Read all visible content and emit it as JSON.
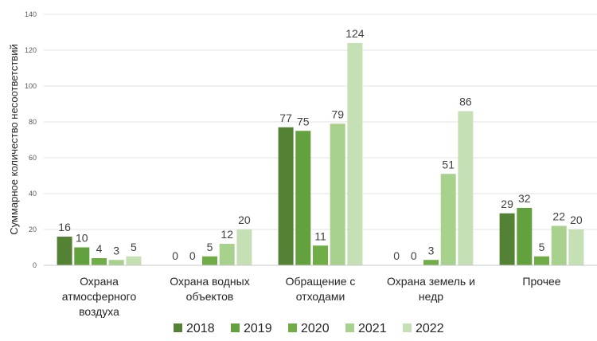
{
  "chart_data": {
    "type": "bar",
    "title": "",
    "ylabel": "Суммарное количество несоответствий",
    "xlabel": "",
    "ylim": [
      0,
      140
    ],
    "yticks": [
      0,
      20,
      40,
      60,
      80,
      100,
      120,
      140
    ],
    "grid": true,
    "legend_position": "bottom",
    "categories": [
      [
        "Охрана",
        "атмосферного",
        "воздуха"
      ],
      [
        "Охрана водных",
        "объектов"
      ],
      [
        "Обращение с",
        "отходами"
      ],
      [
        "Охрана земель и",
        "недр"
      ],
      [
        "Прочее"
      ]
    ],
    "series": [
      {
        "name": "2018",
        "color": "#548235",
        "values": [
          16,
          0,
          77,
          0,
          29
        ]
      },
      {
        "name": "2019",
        "color": "#63a03e",
        "values": [
          10,
          0,
          75,
          0,
          32
        ]
      },
      {
        "name": "2020",
        "color": "#70ad47",
        "values": [
          4,
          5,
          11,
          3,
          5
        ]
      },
      {
        "name": "2021",
        "color": "#a9d18e",
        "values": [
          3,
          12,
          79,
          51,
          22
        ]
      },
      {
        "name": "2022",
        "color": "#c5e0b4",
        "values": [
          5,
          20,
          124,
          86,
          20
        ]
      }
    ]
  }
}
